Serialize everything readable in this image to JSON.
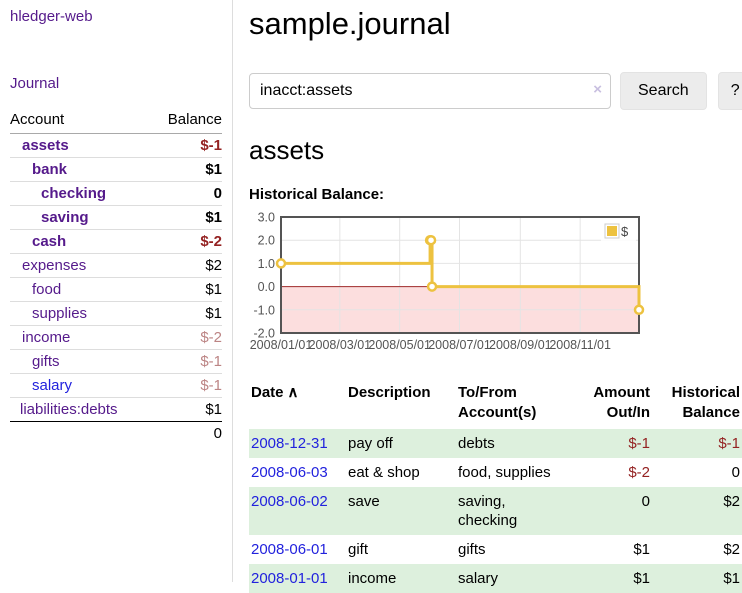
{
  "app": {
    "brand": "hledger-web"
  },
  "colors": {
    "link_purple": "#551a8b",
    "link_blue": "#2222dd",
    "negative_strong": "#942222",
    "negative_faded": "#bc8484",
    "row_stripe_green": "#ddf0dd",
    "chart_line_gold": "#edc240",
    "chart_border_gray": "#545454",
    "negative_region_pink": "#fcdede",
    "zero_line_red": "#a22b2b"
  },
  "sidebar": {
    "nav_journal": "Journal",
    "headers": {
      "account": "Account",
      "balance": "Balance"
    },
    "accounts": [
      {
        "name": "assets",
        "balance": "$-1"
      },
      {
        "name": "bank",
        "balance": "$1"
      },
      {
        "name": "checking",
        "balance": "0"
      },
      {
        "name": "saving",
        "balance": "$1"
      },
      {
        "name": "cash",
        "balance": "$-2"
      },
      {
        "name": "expenses",
        "balance": "$2"
      },
      {
        "name": "food",
        "balance": "$1"
      },
      {
        "name": "supplies",
        "balance": "$1"
      },
      {
        "name": "income",
        "balance": "$-2"
      },
      {
        "name": "gifts",
        "balance": "$-1"
      },
      {
        "name": "salary",
        "balance": "$-1"
      },
      {
        "name": "liabilities:debts",
        "balance": "$1"
      }
    ],
    "total": "0"
  },
  "main": {
    "title": "sample.journal",
    "search": {
      "value": "inacct:assets",
      "clear": "×",
      "button": "Search",
      "help": "?"
    },
    "account_heading": "assets",
    "chart_label": "Historical Balance:"
  },
  "register": {
    "headers": {
      "date": "Date",
      "sort_indicator": "∧",
      "description": "Description",
      "accounts": "To/From Account(s)",
      "amount": "Amount Out/In",
      "balance": "Historical Balance"
    },
    "rows": [
      {
        "date": "2008-12-31",
        "description": "pay off",
        "accounts": "debts",
        "amount": "$-1",
        "balance": "$-1"
      },
      {
        "date": "2008-06-03",
        "description": "eat & shop",
        "accounts": "food, supplies",
        "amount": "$-2",
        "balance": "0"
      },
      {
        "date": "2008-06-02",
        "description": "save",
        "accounts": "saving, checking",
        "amount": "0",
        "balance": "$2"
      },
      {
        "date": "2008-06-01",
        "description": "gift",
        "accounts": "gifts",
        "amount": "$1",
        "balance": "$2"
      },
      {
        "date": "2008-01-01",
        "description": "income",
        "accounts": "salary",
        "amount": "$1",
        "balance": "$1"
      }
    ]
  },
  "chart_data": {
    "type": "line",
    "title": "Historical Balance",
    "step": true,
    "xlim_days": [
      0,
      365
    ],
    "ylim": [
      -2,
      3
    ],
    "y_ticks": [
      {
        "value": 3,
        "label": "3.0"
      },
      {
        "value": 2,
        "label": "2.0"
      },
      {
        "value": 1,
        "label": "1.0"
      },
      {
        "value": 0,
        "label": "0.0"
      },
      {
        "value": -1,
        "label": "-1.0"
      },
      {
        "value": -2,
        "label": "-2.0"
      }
    ],
    "x_ticks": [
      {
        "day": 0,
        "label": "2008/01/01"
      },
      {
        "day": 60,
        "label": "2008/03/01"
      },
      {
        "day": 121,
        "label": "2008/05/01"
      },
      {
        "day": 182,
        "label": "2008/07/01"
      },
      {
        "day": 244,
        "label": "2008/09/01"
      },
      {
        "day": 305,
        "label": "2008/11/01"
      }
    ],
    "series": [
      {
        "name": "$",
        "color": "#edc240",
        "points": [
          {
            "date": "2008-01-01",
            "day": 0,
            "value": 1
          },
          {
            "date": "2008-06-01",
            "day": 152,
            "value": 2
          },
          {
            "date": "2008-06-02",
            "day": 153,
            "value": 2
          },
          {
            "date": "2008-06-03",
            "day": 154,
            "value": 0
          },
          {
            "date": "2008-12-31",
            "day": 365,
            "value": -1
          }
        ]
      }
    ],
    "legend": {
      "label": "$",
      "position": "top-right"
    },
    "negative_region": {
      "fill": "#fcdede",
      "zero_line_color": "#a22b2b"
    },
    "grid": true
  }
}
